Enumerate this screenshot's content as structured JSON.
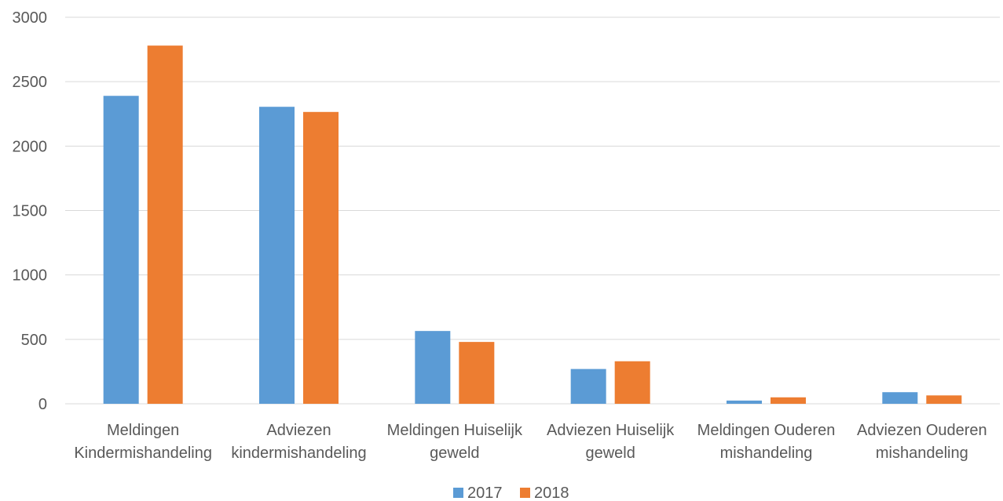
{
  "chart_data": {
    "type": "bar",
    "title": "",
    "xlabel": "",
    "ylabel": "",
    "ylim": [
      0,
      3000
    ],
    "yticks": [
      0,
      500,
      1000,
      1500,
      2000,
      2500,
      3000
    ],
    "grid": true,
    "legend_position": "bottom",
    "categories": [
      [
        "Meldingen",
        "Kindermishandeling"
      ],
      [
        "Adviezen",
        "kindermishandeling"
      ],
      [
        "Meldingen Huiselijk",
        "geweld"
      ],
      [
        "Adviezen Huiselijk",
        "geweld"
      ],
      [
        "Meldingen Ouderen",
        "mishandeling"
      ],
      [
        "Adviezen Ouderen",
        "mishandeling"
      ]
    ],
    "series": [
      {
        "name": "2017",
        "color": "#5b9bd5",
        "values": [
          2390,
          2305,
          565,
          270,
          25,
          90
        ]
      },
      {
        "name": "2018",
        "color": "#ed7d31",
        "values": [
          2780,
          2265,
          480,
          330,
          50,
          65
        ]
      }
    ]
  }
}
